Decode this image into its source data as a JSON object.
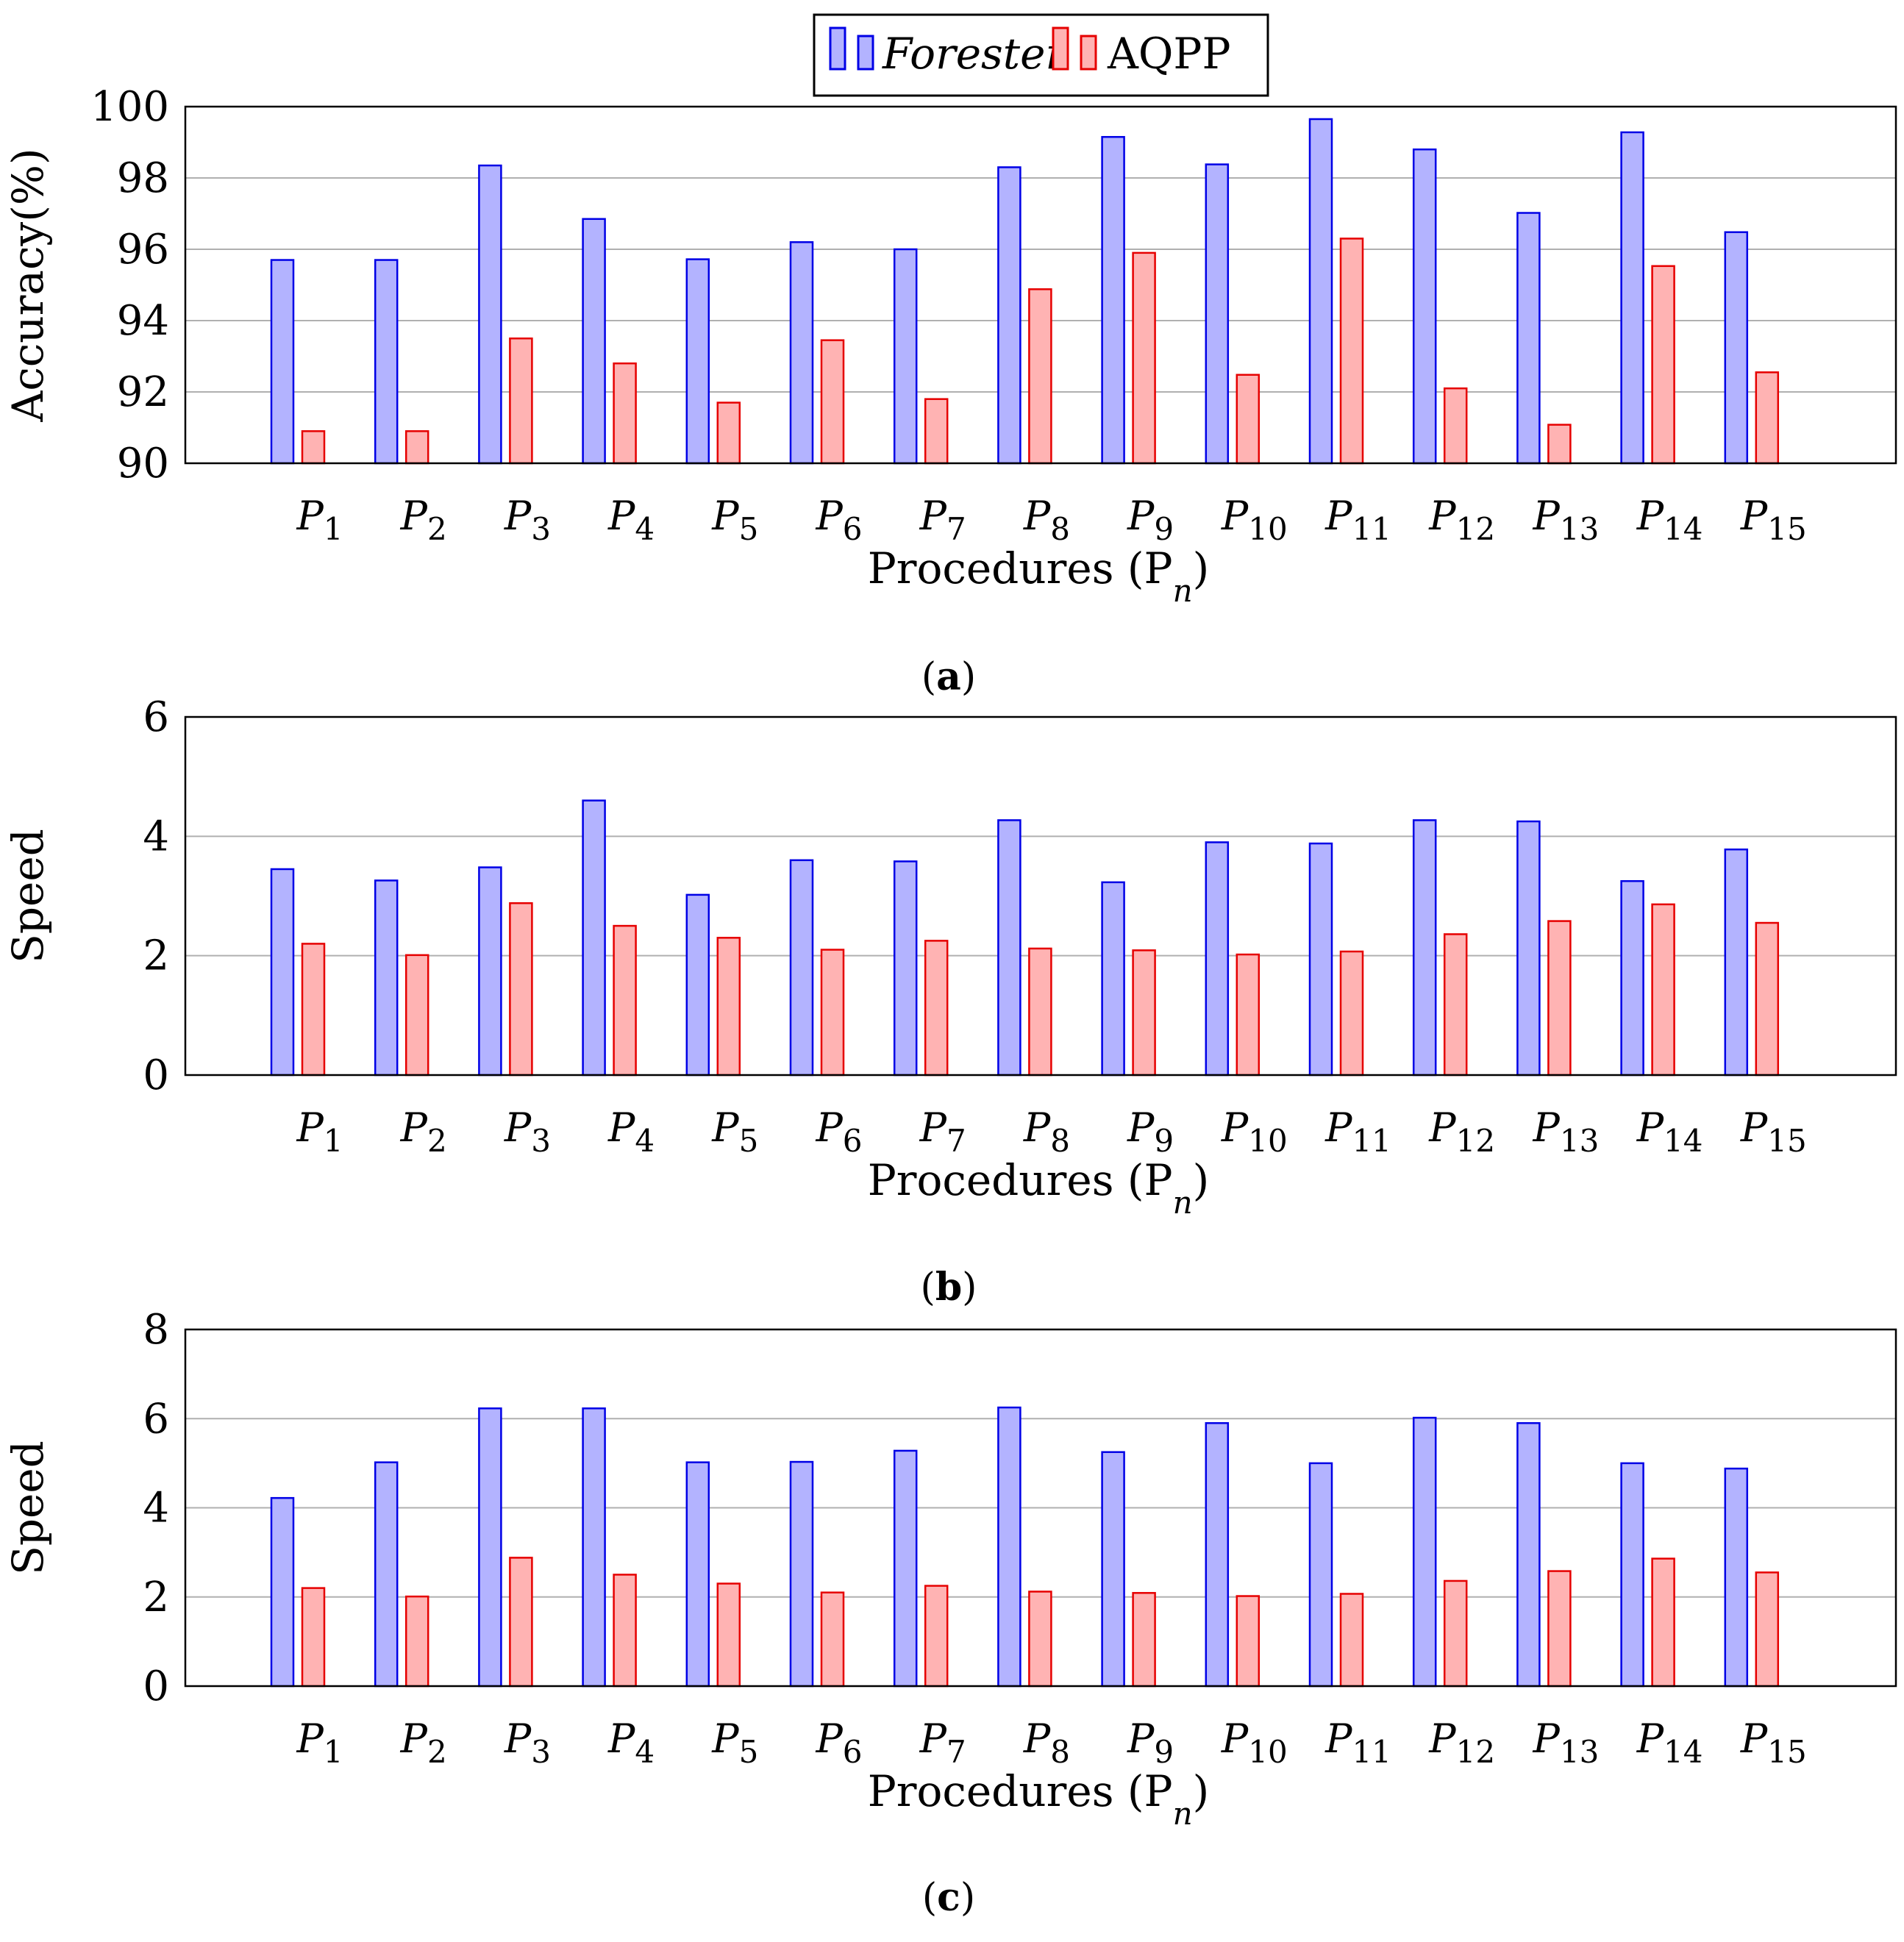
{
  "legend": {
    "series": [
      {
        "name": "Forester",
        "italic": true,
        "fill": "#b3b3ff",
        "stroke": "#0000e6"
      },
      {
        "name": "AQPP",
        "italic": false,
        "fill": "#ffb3b3",
        "stroke": "#e60000"
      }
    ]
  },
  "chart_data": [
    {
      "type": "bar",
      "caption_letter": "a",
      "categories": [
        "1",
        "2",
        "3",
        "4",
        "5",
        "6",
        "7",
        "8",
        "9",
        "10",
        "11",
        "12",
        "13",
        "14",
        "15"
      ],
      "category_prefix": "P",
      "xlabel": "Procedures (P",
      "xlabel_sub": "n",
      "xlabel_close": ")",
      "ylabel": "Accuracy(%)",
      "ylim": [
        90,
        100
      ],
      "yticks": [
        "90",
        "92",
        "94",
        "96",
        "98",
        "100"
      ],
      "grid": true,
      "series": [
        {
          "name": "Forester",
          "values": [
            95.7,
            95.7,
            98.35,
            96.85,
            95.72,
            96.2,
            96.0,
            98.3,
            99.15,
            98.38,
            99.65,
            98.8,
            97.02,
            99.28,
            96.48
          ]
        },
        {
          "name": "AQPP",
          "values": [
            90.9,
            90.9,
            93.5,
            92.8,
            91.7,
            93.45,
            91.8,
            94.88,
            95.9,
            92.48,
            96.3,
            92.1,
            91.08,
            95.53,
            92.55
          ]
        }
      ]
    },
    {
      "type": "bar",
      "caption_letter": "b",
      "categories": [
        "1",
        "2",
        "3",
        "4",
        "5",
        "6",
        "7",
        "8",
        "9",
        "10",
        "11",
        "12",
        "13",
        "14",
        "15"
      ],
      "category_prefix": "P",
      "xlabel": "Procedures (P",
      "xlabel_sub": "n",
      "xlabel_close": ")",
      "ylabel": "Speed",
      "ylim": [
        0,
        6
      ],
      "yticks": [
        "0",
        "2",
        "4",
        "6"
      ],
      "grid": true,
      "series": [
        {
          "name": "Forester",
          "values": [
            3.45,
            3.26,
            3.48,
            4.6,
            3.02,
            3.6,
            3.58,
            4.27,
            3.23,
            3.9,
            3.88,
            4.27,
            4.25,
            3.25,
            3.78
          ]
        },
        {
          "name": "AQPP",
          "values": [
            2.2,
            2.01,
            2.88,
            2.5,
            2.3,
            2.1,
            2.25,
            2.12,
            2.09,
            2.02,
            2.07,
            2.36,
            2.58,
            2.86,
            2.55
          ]
        }
      ]
    },
    {
      "type": "bar",
      "caption_letter": "c",
      "categories": [
        "1",
        "2",
        "3",
        "4",
        "5",
        "6",
        "7",
        "8",
        "9",
        "10",
        "11",
        "12",
        "13",
        "14",
        "15"
      ],
      "category_prefix": "P",
      "xlabel": "Procedures (P",
      "xlabel_sub": "n",
      "xlabel_close": ")",
      "ylabel": "Speed",
      "ylim": [
        0,
        8
      ],
      "yticks": [
        "0",
        "2",
        "4",
        "6",
        "8"
      ],
      "grid": true,
      "series": [
        {
          "name": "Forester",
          "values": [
            4.22,
            5.02,
            6.23,
            6.23,
            5.02,
            5.03,
            5.28,
            6.25,
            5.25,
            5.9,
            5.0,
            6.02,
            5.9,
            5.0,
            4.88
          ]
        },
        {
          "name": "AQPP",
          "values": [
            2.2,
            2.01,
            2.88,
            2.5,
            2.3,
            2.1,
            2.25,
            2.12,
            2.09,
            2.02,
            2.07,
            2.36,
            2.58,
            2.86,
            2.55
          ]
        }
      ]
    }
  ]
}
